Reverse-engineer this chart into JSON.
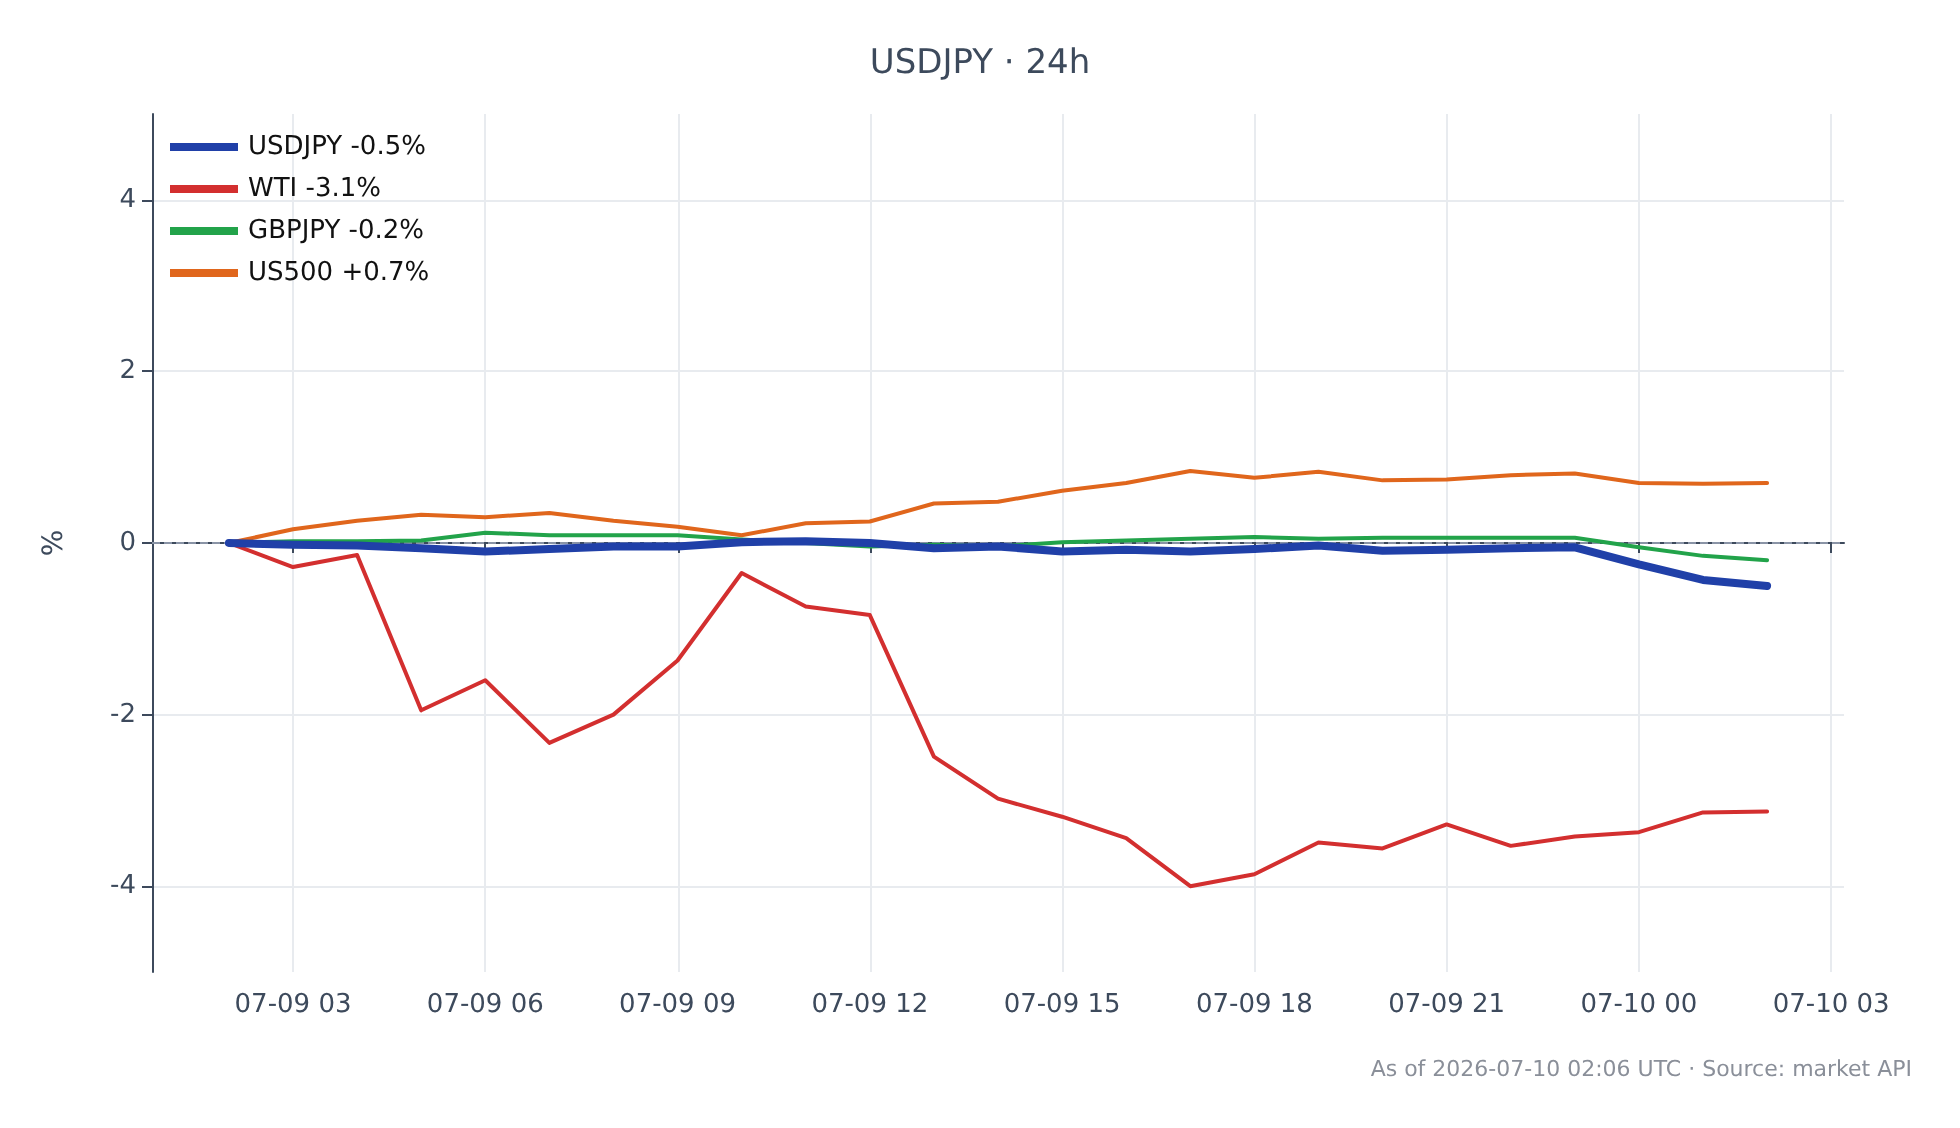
{
  "chart_data": {
    "type": "line",
    "title": "USDJPY · 24h",
    "ylabel": "%",
    "annotations": [
      "As of 2026-07-10 02:06 UTC · Source: market API"
    ],
    "x": [
      "2026-07-09T02:00",
      "2026-07-09T03:00",
      "2026-07-09T04:00",
      "2026-07-09T05:00",
      "2026-07-09T06:00",
      "2026-07-09T07:00",
      "2026-07-09T08:00",
      "2026-07-09T09:00",
      "2026-07-09T10:00",
      "2026-07-09T11:00",
      "2026-07-09T12:00",
      "2026-07-09T13:00",
      "2026-07-09T14:00",
      "2026-07-09T15:00",
      "2026-07-09T16:00",
      "2026-07-09T17:00",
      "2026-07-09T18:00",
      "2026-07-09T19:00",
      "2026-07-09T20:00",
      "2026-07-09T21:00",
      "2026-07-09T22:00",
      "2026-07-09T23:00",
      "2026-07-10T00:00",
      "2026-07-10T01:00",
      "2026-07-10T02:00"
    ],
    "series": [
      {
        "name": "USDJPY -0.5%",
        "color": "#2040a8",
        "values": [
          0,
          -0.02,
          -0.03,
          -0.06,
          -0.1,
          -0.07,
          -0.04,
          -0.04,
          0.01,
          0.02,
          0.0,
          -0.06,
          -0.04,
          -0.1,
          -0.08,
          -0.1,
          -0.07,
          -0.03,
          -0.09,
          -0.08,
          -0.06,
          -0.05,
          -0.25,
          -0.43,
          -0.5
        ]
      },
      {
        "name": "WTI -3.1%",
        "color": "#d32f2f",
        "values": [
          0,
          -0.28,
          -0.14,
          -1.95,
          -1.6,
          -2.33,
          -2.0,
          -1.37,
          -0.35,
          -0.74,
          -0.84,
          -2.49,
          -2.98,
          -3.19,
          -3.44,
          -4.0,
          -3.86,
          -3.49,
          -3.56,
          -3.28,
          -3.53,
          -3.42,
          -3.37,
          -3.14,
          -3.13
        ]
      },
      {
        "name": "GBPJPY -0.2%",
        "color": "#22a34a",
        "values": [
          0,
          0.02,
          0.02,
          0.03,
          0.12,
          0.09,
          0.09,
          0.09,
          0.04,
          0.0,
          -0.04,
          -0.02,
          -0.04,
          0.01,
          0.03,
          0.05,
          0.07,
          0.05,
          0.06,
          0.06,
          0.06,
          0.06,
          -0.05,
          -0.15,
          -0.2
        ]
      },
      {
        "name": "US500 +0.7%",
        "color": "#e0661c",
        "values": [
          0,
          0.16,
          0.26,
          0.33,
          0.3,
          0.35,
          0.26,
          0.19,
          0.09,
          0.23,
          0.25,
          0.46,
          0.48,
          0.61,
          0.7,
          0.84,
          0.76,
          0.83,
          0.73,
          0.74,
          0.79,
          0.81,
          0.7,
          0.69,
          0.7
        ]
      }
    ],
    "xlim": [
      "2026-07-09T00:48",
      "2026-07-10T03:12"
    ],
    "xticks": [
      {
        "value": "2026-07-09T03:00",
        "label": "07-09 03"
      },
      {
        "value": "2026-07-09T06:00",
        "label": "07-09 06"
      },
      {
        "value": "2026-07-09T09:00",
        "label": "07-09 09"
      },
      {
        "value": "2026-07-09T12:00",
        "label": "07-09 12"
      },
      {
        "value": "2026-07-09T15:00",
        "label": "07-09 15"
      },
      {
        "value": "2026-07-09T18:00",
        "label": "07-09 18"
      },
      {
        "value": "2026-07-09T21:00",
        "label": "07-09 21"
      },
      {
        "value": "2026-07-10T00:00",
        "label": "07-10 00"
      },
      {
        "value": "2026-07-10T03:00",
        "label": "07-10 03"
      }
    ],
    "ylim": [
      -5,
      5
    ],
    "yticks": [
      -4,
      -2,
      0,
      2,
      4
    ],
    "ref_lines": [
      {
        "axis": "y",
        "value": 0,
        "color": "#8a94a6",
        "line_style": "dashed"
      }
    ],
    "grid": true,
    "legend": "top left",
    "marker": "none",
    "line_style": "solid"
  }
}
